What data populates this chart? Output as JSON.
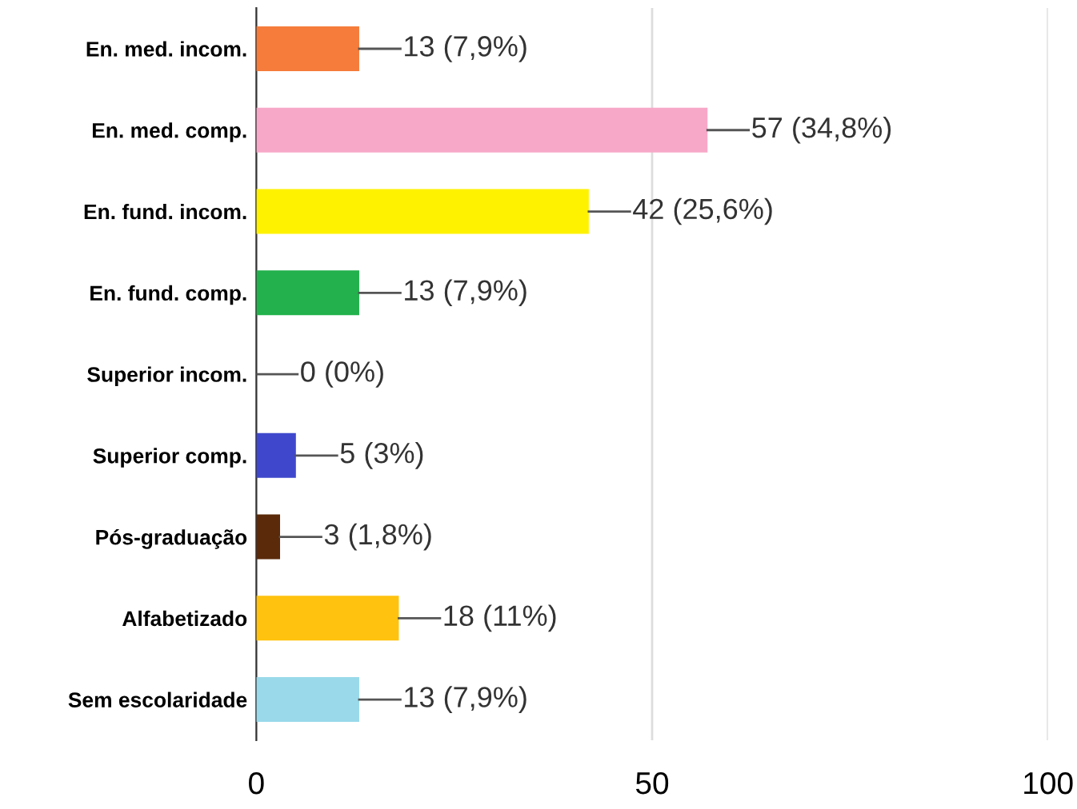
{
  "chart_data": {
    "type": "bar",
    "orientation": "horizontal",
    "categories": [
      "En. med. incom.",
      "En. med. comp.",
      "En. fund. incom.",
      "En. fund. comp.",
      "Superior incom.",
      "Superior comp.",
      "Pós-graduação",
      "Alfabetizado",
      "Sem escolaridade"
    ],
    "values": [
      13,
      57,
      42,
      13,
      0,
      5,
      3,
      18,
      13
    ],
    "colors": [
      "#f57c3a",
      "#f7a8c8",
      "#fff200",
      "#22b14c",
      "#9e9e9e",
      "#3f48cc",
      "#5a2a0a",
      "#ffc20e",
      "#99d9ea"
    ],
    "value_labels": [
      "13 (7,9%)",
      "57 (34,8%)",
      "42 (25,6%)",
      "13 (7,9%)",
      "0 (0%)",
      "5 (3%)",
      "3 (1,8%)",
      "18 (11%)",
      "13 (7,9%)"
    ],
    "xlim": [
      0,
      100
    ],
    "xticks": [
      0,
      50,
      100
    ],
    "grid": "x",
    "legend": false
  }
}
